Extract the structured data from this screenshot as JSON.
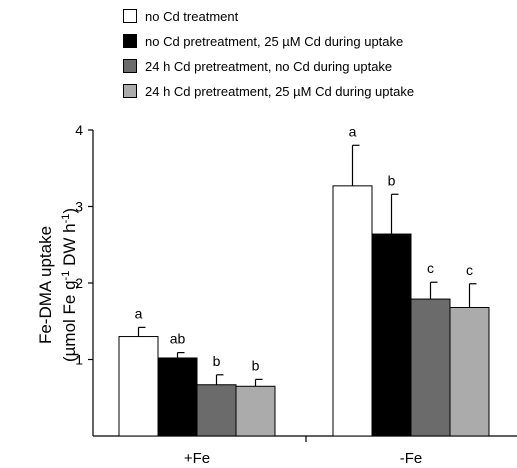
{
  "chart_data": {
    "type": "bar",
    "categories": [
      "+Fe",
      "-Fe"
    ],
    "ylabel_line1": "Fe-DMA uptake",
    "ylabel_line2": "(µmol Fe g",
    "ylabel_sup1": "-1",
    "ylabel_mid": " DW h",
    "ylabel_sup2": "-1",
    "ylabel_end": ")",
    "ylim": [
      0,
      4
    ],
    "yticks": [
      1,
      2,
      3,
      4
    ],
    "series": [
      {
        "name": "no Cd treatment",
        "color": "#ffffff",
        "values": [
          1.3,
          3.27
        ],
        "errors": [
          0.12,
          0.53
        ],
        "labels": [
          "a",
          "a"
        ]
      },
      {
        "name": "no Cd pretreatment, 25 µM Cd during uptake",
        "color": "#000000",
        "values": [
          1.02,
          2.64
        ],
        "errors": [
          0.07,
          0.52
        ],
        "labels": [
          "ab",
          "b"
        ]
      },
      {
        "name": "24 h Cd pretreatment, no Cd during uptake",
        "color": "#6b6b6b",
        "values": [
          0.67,
          1.79
        ],
        "errors": [
          0.13,
          0.22
        ],
        "labels": [
          "b",
          "c"
        ]
      },
      {
        "name": "24 h Cd pretreatment, 25 µM Cd during uptake",
        "color": "#ababab",
        "values": [
          0.65,
          1.68
        ],
        "errors": [
          0.09,
          0.31
        ],
        "labels": [
          "b",
          "c"
        ]
      }
    ],
    "legend_position": "top",
    "grid": false
  }
}
